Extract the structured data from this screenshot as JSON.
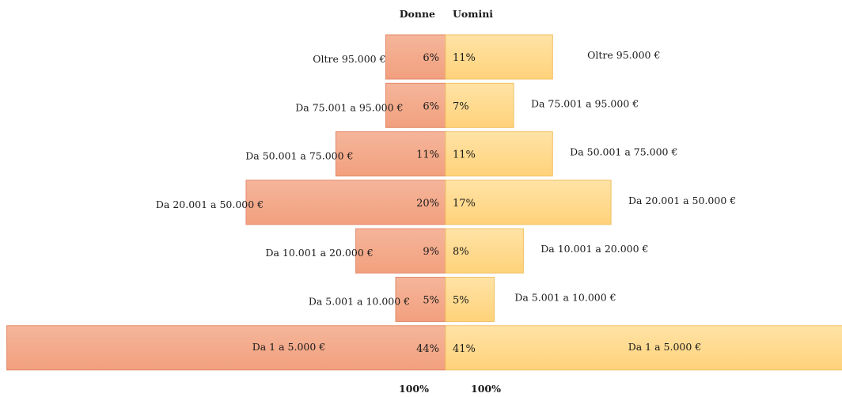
{
  "chart_data": {
    "type": "bar",
    "orientation": "horizontal-diverging",
    "categories": [
      "Oltre 95.000  €",
      "Da 75.001 a 95.000  €",
      "Da 50.001 a 75.000  €",
      "Da 20.001 a 50.000  €",
      "Da 10.001 a 20.000  €",
      "Da 5.001 a 10.000  €",
      "Da 1 a 5.000 €"
    ],
    "series": [
      {
        "name": "Donne",
        "side": "left",
        "color": "#f4ae8e",
        "values": [
          6,
          6,
          11,
          20,
          9,
          5,
          44
        ],
        "labels": [
          "6%",
          "6%",
          "11%",
          "20%",
          "9%",
          "5%",
          "44%"
        ],
        "total_label": "100%"
      },
      {
        "name": "Uomini",
        "side": "right",
        "color": "#ffd98a",
        "values": [
          11,
          7,
          11,
          17,
          8,
          5,
          41
        ],
        "labels": [
          "11%",
          "7%",
          "11%",
          "17%",
          "8%",
          "5%",
          "41%"
        ],
        "total_label": "100%"
      }
    ],
    "title": "",
    "xlabel": "",
    "ylabel": "",
    "legend": "none",
    "grid": false
  }
}
